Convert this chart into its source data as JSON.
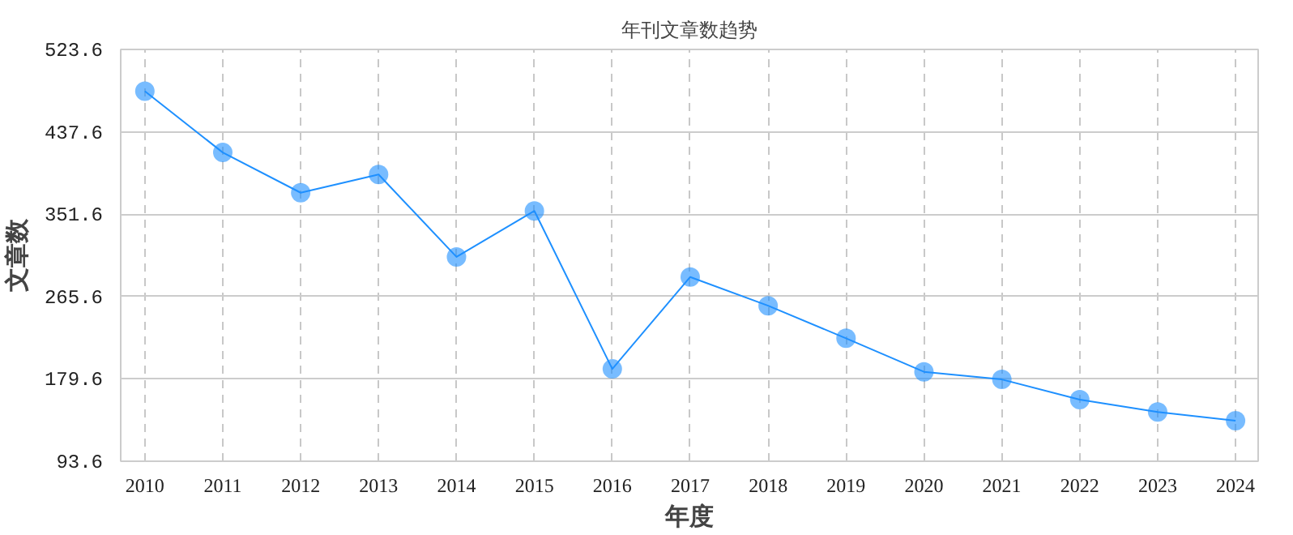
{
  "chart_data": {
    "type": "line",
    "title": "年刊文章数趋势",
    "xlabel": "年度",
    "ylabel": "文章数",
    "categories": [
      "2010",
      "2011",
      "2012",
      "2013",
      "2014",
      "2015",
      "2016",
      "2017",
      "2018",
      "2019",
      "2020",
      "2021",
      "2022",
      "2023",
      "2024"
    ],
    "series": [
      {
        "color": "#1e90ff",
        "values": [
          480,
          416,
          374,
          393,
          307,
          355,
          190,
          286,
          256,
          222,
          187,
          179,
          158,
          145,
          136
        ]
      }
    ],
    "ylim": [
      93.6,
      523.6
    ],
    "yticks": [
      93.6,
      179.6,
      265.6,
      351.6,
      437.6,
      523.6
    ],
    "grid": true,
    "marker": "circle",
    "line_style": "solid"
  }
}
